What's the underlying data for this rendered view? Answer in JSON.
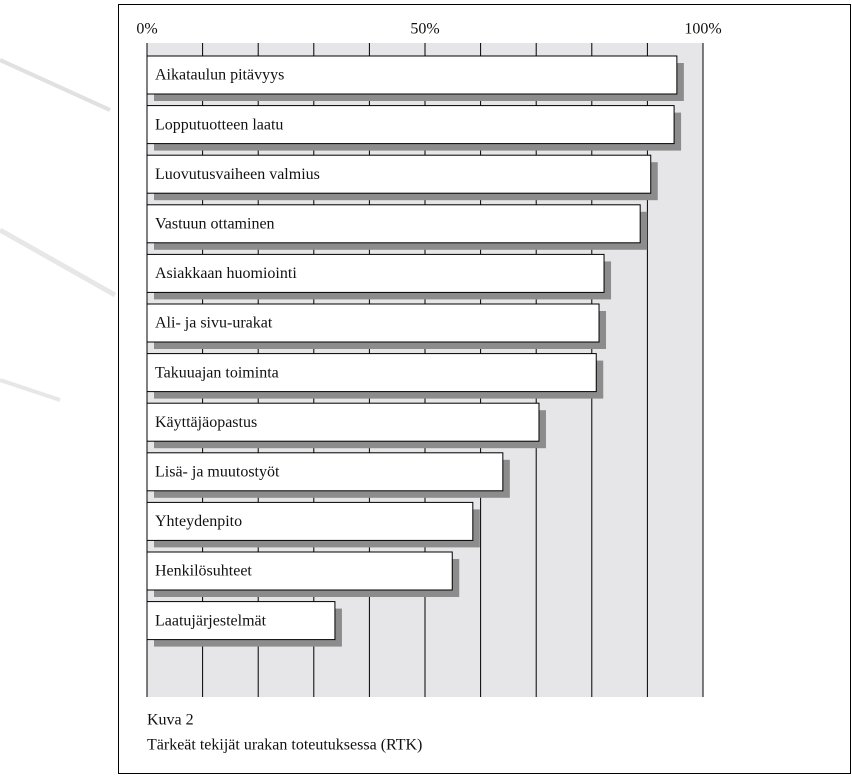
{
  "chart_data": {
    "type": "bar",
    "orientation": "horizontal",
    "figure_label": "Kuva 2",
    "title": "Tärkeät tekijät urakan toteutuksessa (RTK)",
    "categories": [
      "Aikataulun pitävyys",
      "Lopputuotteen laatu",
      "Luovutusvaiheen valmius",
      "Vastuun ottaminen",
      "Asiakkaan huomiointi",
      "Ali- ja sivu-urakat",
      "Takuuajan toiminta",
      "Käyttäjäopastus",
      "Lisä- ja muutostyöt",
      "Yhteydenpito",
      "Henkilösuhteet",
      "Laatujärjestelmät"
    ],
    "values": [
      95.3,
      94.8,
      90.6,
      88.7,
      82.2,
      81.3,
      80.8,
      70.5,
      64.0,
      58.6,
      54.9,
      33.8
    ],
    "color": "#ffffff",
    "shadow_color": "#8c8c8c",
    "plot_background": "#e6e6e8",
    "xlim": [
      0,
      100
    ],
    "xticks": [
      {
        "value": 0,
        "label": "0%"
      },
      {
        "value": 50,
        "label": "50%"
      },
      {
        "value": 100,
        "label": "100%"
      }
    ],
    "xgrid": [
      0,
      10,
      20,
      30,
      40,
      50,
      60,
      70,
      80,
      90,
      100
    ],
    "grid": true
  }
}
